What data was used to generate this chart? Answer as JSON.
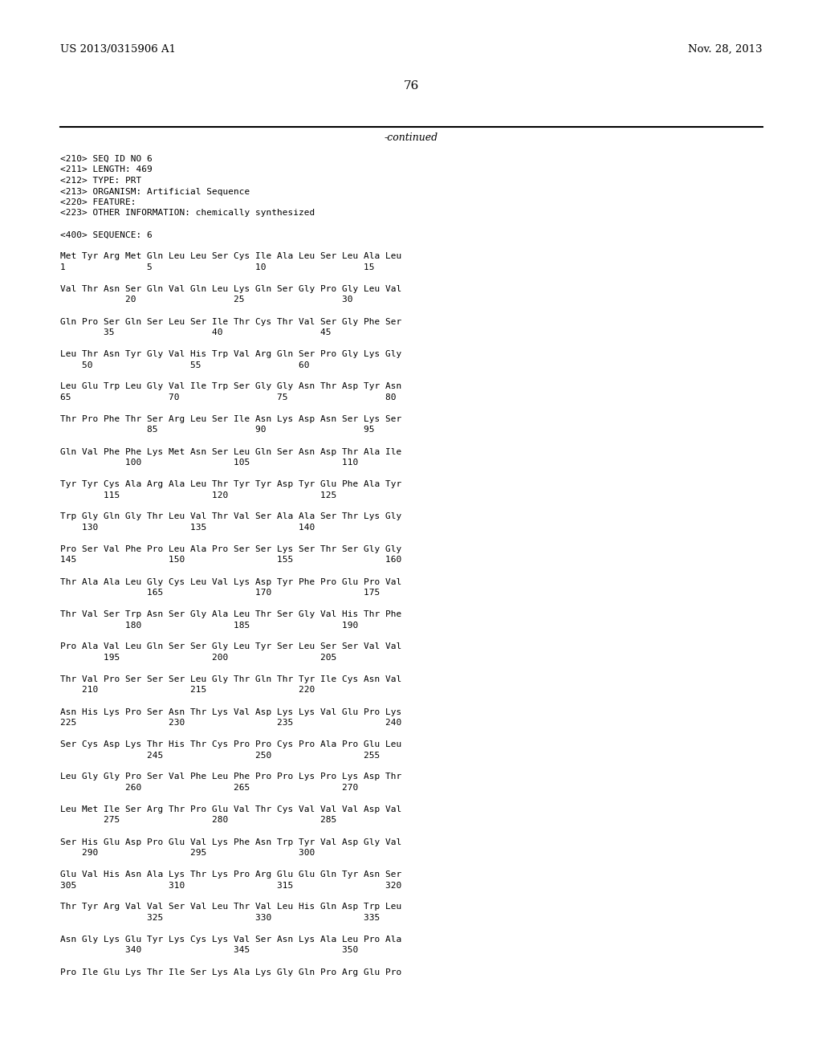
{
  "background_color": "#ffffff",
  "header_left": "US 2013/0315906 A1",
  "header_right": "Nov. 28, 2013",
  "page_number": "76",
  "continued_label": "-continued",
  "monospace_fontsize": 8.0,
  "header_fontsize": 9.5,
  "page_num_fontsize": 11,
  "continued_fontsize": 9,
  "body_lines": [
    "<210> SEQ ID NO 6",
    "<211> LENGTH: 469",
    "<212> TYPE: PRT",
    "<213> ORGANISM: Artificial Sequence",
    "<220> FEATURE:",
    "<223> OTHER INFORMATION: chemically synthesized",
    "",
    "<400> SEQUENCE: 6",
    "",
    "Met Tyr Arg Met Gln Leu Leu Ser Cys Ile Ala Leu Ser Leu Ala Leu",
    "1               5                   10                  15",
    "",
    "Val Thr Asn Ser Gln Val Gln Leu Lys Gln Ser Gly Pro Gly Leu Val",
    "            20                  25                  30",
    "",
    "Gln Pro Ser Gln Ser Leu Ser Ile Thr Cys Thr Val Ser Gly Phe Ser",
    "        35                  40                  45",
    "",
    "Leu Thr Asn Tyr Gly Val His Trp Val Arg Gln Ser Pro Gly Lys Gly",
    "    50                  55                  60",
    "",
    "Leu Glu Trp Leu Gly Val Ile Trp Ser Gly Gly Asn Thr Asp Tyr Asn",
    "65                  70                  75                  80",
    "",
    "Thr Pro Phe Thr Ser Arg Leu Ser Ile Asn Lys Asp Asn Ser Lys Ser",
    "                85                  90                  95",
    "",
    "Gln Val Phe Phe Lys Met Asn Ser Leu Gln Ser Asn Asp Thr Ala Ile",
    "            100                 105                 110",
    "",
    "Tyr Tyr Cys Ala Arg Ala Leu Thr Tyr Tyr Asp Tyr Glu Phe Ala Tyr",
    "        115                 120                 125",
    "",
    "Trp Gly Gln Gly Thr Leu Val Thr Val Ser Ala Ala Ser Thr Lys Gly",
    "    130                 135                 140",
    "",
    "Pro Ser Val Phe Pro Leu Ala Pro Ser Ser Lys Ser Thr Ser Gly Gly",
    "145                 150                 155                 160",
    "",
    "Thr Ala Ala Leu Gly Cys Leu Val Lys Asp Tyr Phe Pro Glu Pro Val",
    "                165                 170                 175",
    "",
    "Thr Val Ser Trp Asn Ser Gly Ala Leu Thr Ser Gly Val His Thr Phe",
    "            180                 185                 190",
    "",
    "Pro Ala Val Leu Gln Ser Ser Gly Leu Tyr Ser Leu Ser Ser Val Val",
    "        195                 200                 205",
    "",
    "Thr Val Pro Ser Ser Ser Leu Gly Thr Gln Thr Tyr Ile Cys Asn Val",
    "    210                 215                 220",
    "",
    "Asn His Lys Pro Ser Asn Thr Lys Val Asp Lys Lys Val Glu Pro Lys",
    "225                 230                 235                 240",
    "",
    "Ser Cys Asp Lys Thr His Thr Cys Pro Pro Cys Pro Ala Pro Glu Leu",
    "                245                 250                 255",
    "",
    "Leu Gly Gly Pro Ser Val Phe Leu Phe Pro Pro Lys Pro Lys Asp Thr",
    "            260                 265                 270",
    "",
    "Leu Met Ile Ser Arg Thr Pro Glu Val Thr Cys Val Val Val Asp Val",
    "        275                 280                 285",
    "",
    "Ser His Glu Asp Pro Glu Val Lys Phe Asn Trp Tyr Val Asp Gly Val",
    "    290                 295                 300",
    "",
    "Glu Val His Asn Ala Lys Thr Lys Pro Arg Glu Glu Gln Tyr Asn Ser",
    "305                 310                 315                 320",
    "",
    "Thr Tyr Arg Val Val Ser Val Leu Thr Val Leu His Gln Asp Trp Leu",
    "                325                 330                 335",
    "",
    "Asn Gly Lys Glu Tyr Lys Cys Lys Val Ser Asn Lys Ala Leu Pro Ala",
    "            340                 345                 350",
    "",
    "Pro Ile Glu Lys Thr Ile Ser Lys Ala Lys Gly Gln Pro Arg Glu Pro"
  ]
}
